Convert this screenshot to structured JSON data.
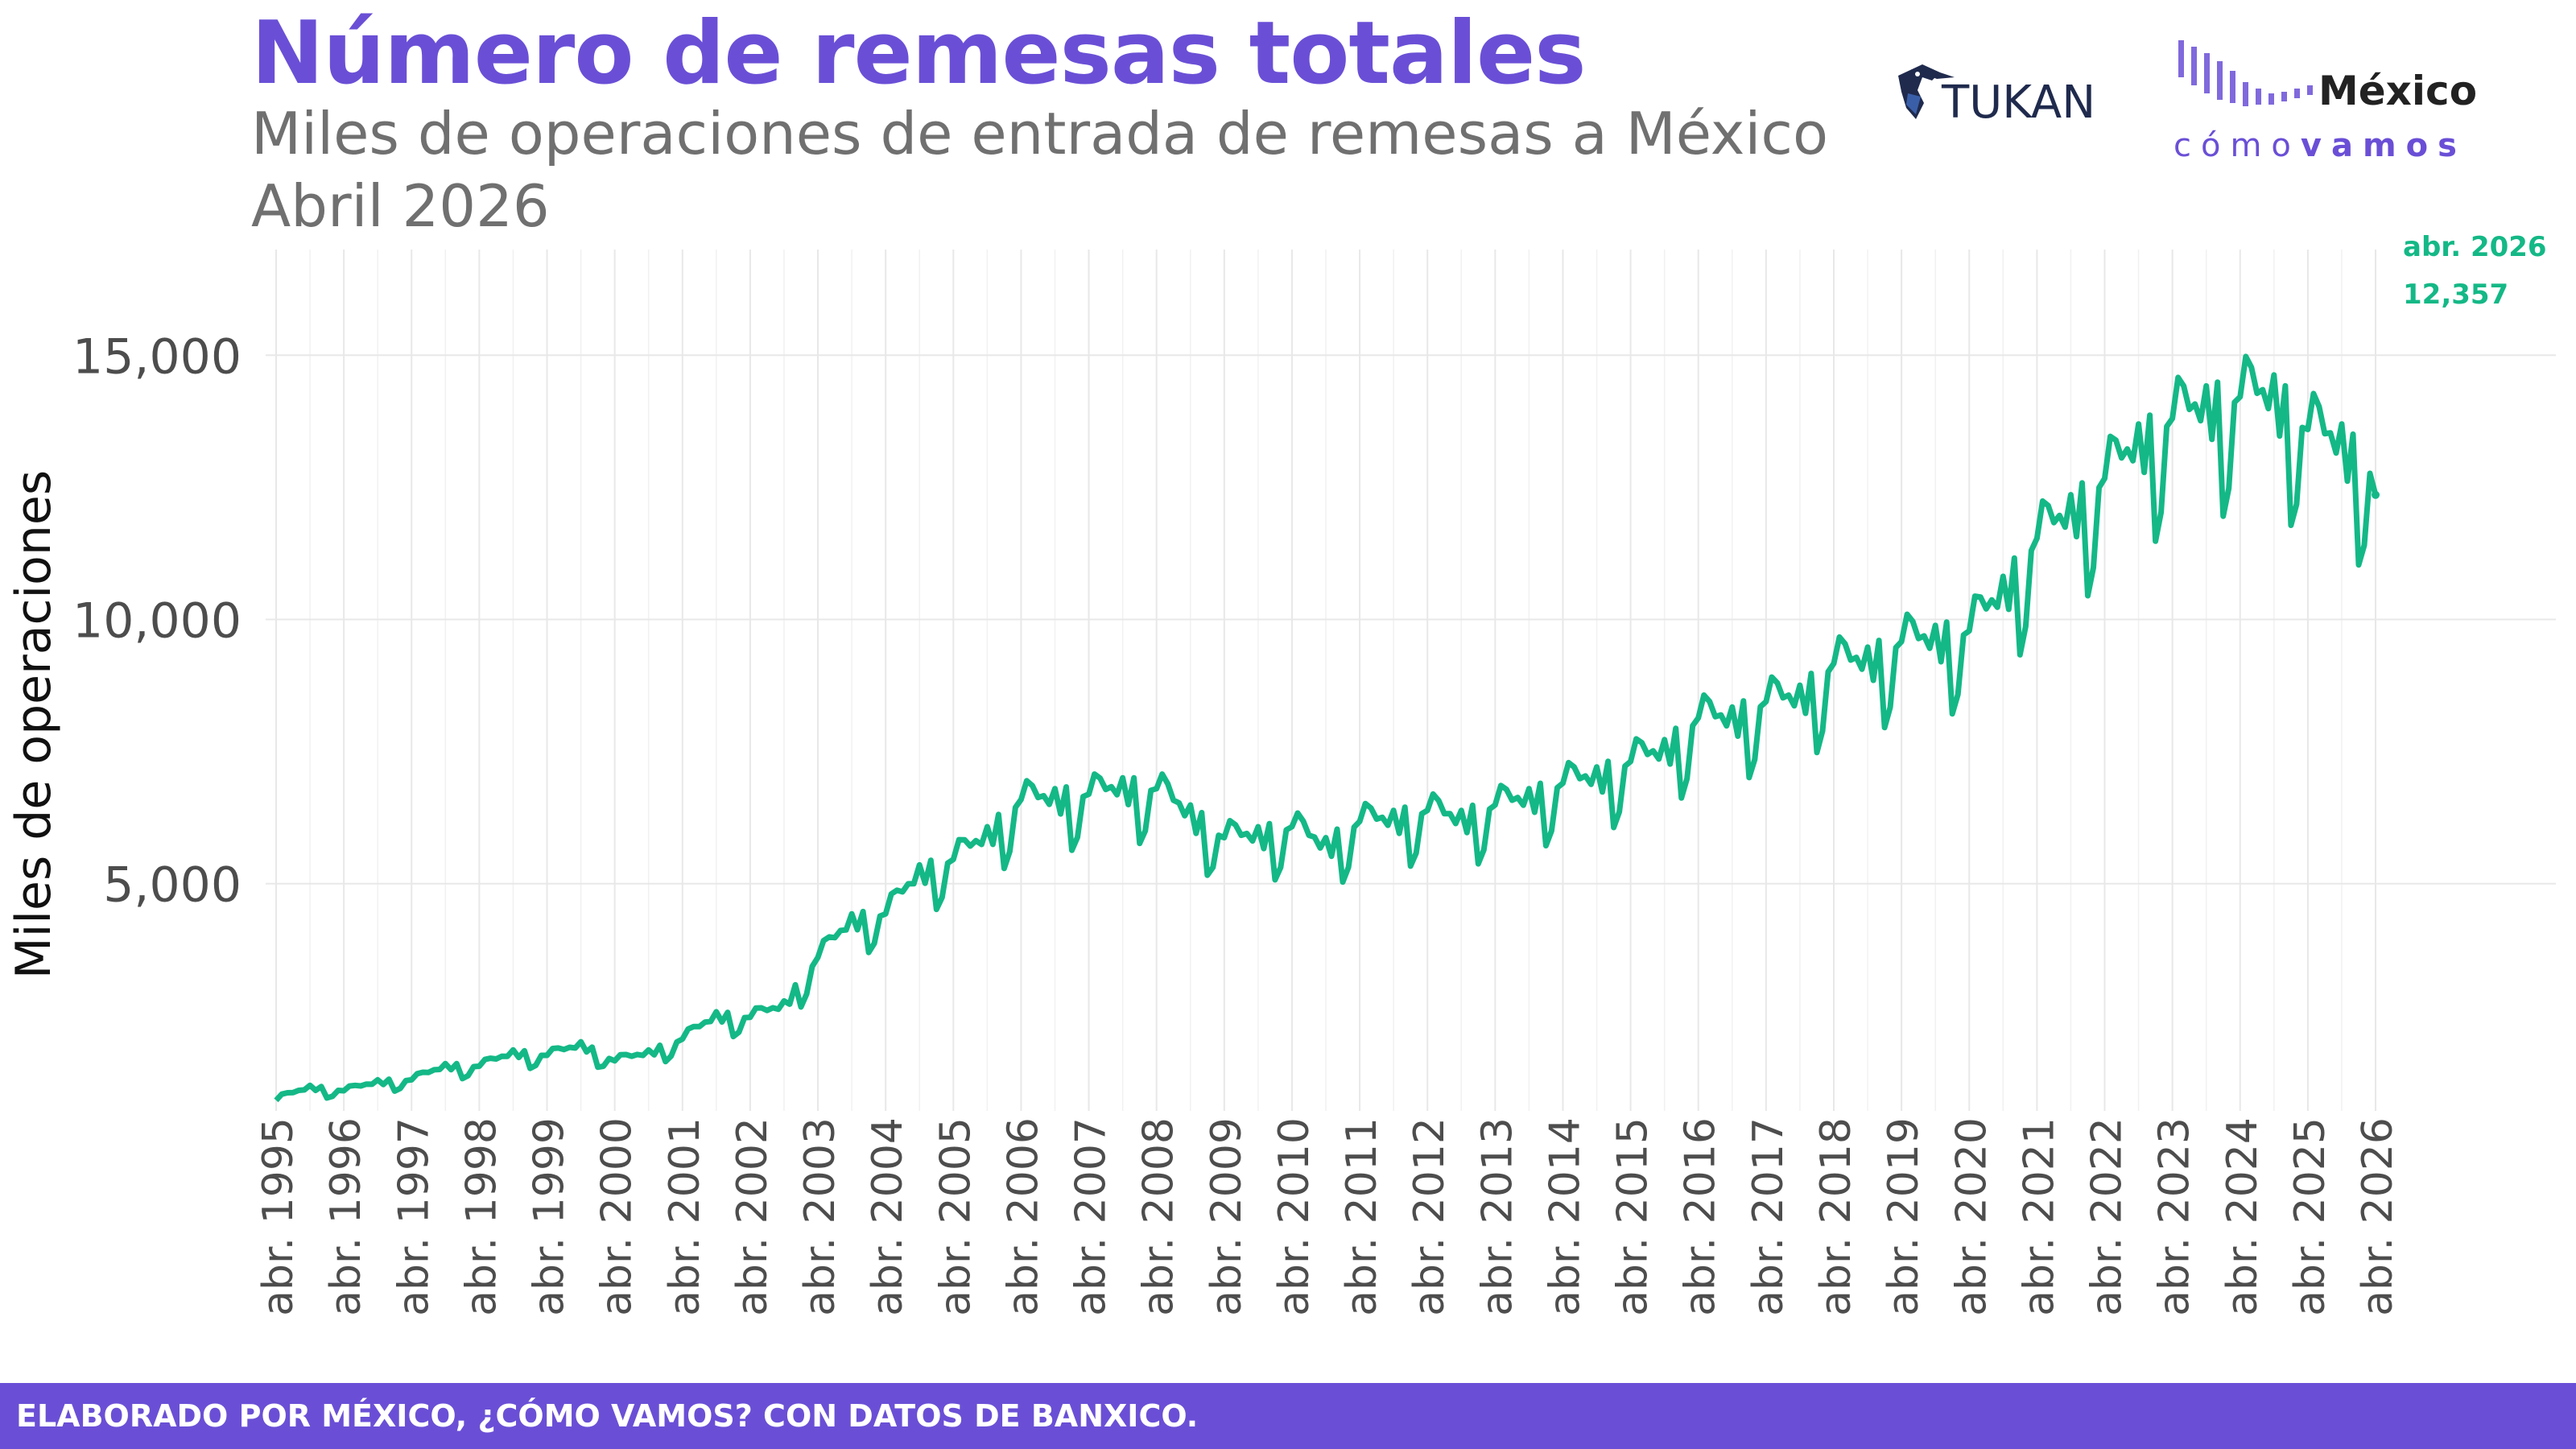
{
  "title": "Número de remesas totales",
  "subtitle": "Miles de operaciones de entrada de remesas a México",
  "date_line": "Abril 2026",
  "logos": {
    "tukan": "TUKAN",
    "mcv_top": "México",
    "mcv_bottom_light": "cómo",
    "mcv_bottom_bold": "vamos"
  },
  "footer": "ELABORADO POR MÉXICO, ¿CÓMO VAMOS? CON DATOS DE BANXICO.",
  "colors": {
    "line": "#14b886",
    "brand_purple": "#6a4fd6",
    "grid": "#e8e8e8",
    "text_gray": "#707070"
  },
  "chart_data": {
    "type": "line",
    "title": "",
    "xlabel": "",
    "ylabel": "Miles de operaciones",
    "x_ticks": [
      "abr. 1995",
      "abr. 1996",
      "abr. 1997",
      "abr. 1998",
      "abr. 1999",
      "abr. 2000",
      "abr. 2001",
      "abr. 2002",
      "abr. 2003",
      "abr. 2004",
      "abr. 2005",
      "abr. 2006",
      "abr. 2007",
      "abr. 2008",
      "abr. 2009",
      "abr. 2010",
      "abr. 2011",
      "abr. 2012",
      "abr. 2013",
      "abr. 2014",
      "abr. 2015",
      "abr. 2016",
      "abr. 2017",
      "abr. 2018",
      "abr. 2019",
      "abr. 2020",
      "abr. 2021",
      "abr. 2022",
      "abr. 2023",
      "abr. 2024",
      "abr. 2025",
      "abr. 2026"
    ],
    "y_ticks": [
      5000,
      10000,
      15000
    ],
    "y_tick_labels": [
      "5,000",
      "10,000",
      "15,000"
    ],
    "ylim": [
      700,
      17000
    ],
    "grid": true,
    "annotation": {
      "date": "abr. 2026",
      "value_label": "12,357",
      "value": 12357
    },
    "series": [
      {
        "x_start": "1995-04",
        "frequency": "monthly",
        "note_points": [
          [
            "1995-04",
            900
          ],
          [
            "1995-10",
            1150
          ],
          [
            "1996-04",
            1050
          ],
          [
            "1996-10",
            1250
          ],
          [
            "1997-04",
            1250
          ],
          [
            "1997-10",
            1550
          ],
          [
            "1998-04",
            1500
          ],
          [
            "1998-10",
            1800
          ],
          [
            "1999-04",
            1700
          ],
          [
            "1999-10",
            1950
          ],
          [
            "2000-04",
            1600
          ],
          [
            "2000-10",
            1800
          ],
          [
            "2001-04",
            2000
          ],
          [
            "2001-10",
            2500
          ],
          [
            "2002-04",
            2400
          ],
          [
            "2002-10",
            2700
          ],
          [
            "2003-04",
            3500
          ],
          [
            "2003-10",
            4300
          ],
          [
            "2004-04",
            4300
          ],
          [
            "2004-10",
            5200
          ],
          [
            "2005-04",
            5300
          ],
          [
            "2005-10",
            5900
          ],
          [
            "2006-04",
            6400
          ],
          [
            "2006-10",
            6600
          ],
          [
            "2007-04",
            6500
          ],
          [
            "2007-10",
            6800
          ],
          [
            "2008-04",
            6600
          ],
          [
            "2008-10",
            6300
          ],
          [
            "2009-04",
            5700
          ],
          [
            "2009-10",
            5900
          ],
          [
            "2010-04",
            5900
          ],
          [
            "2010-10",
            5700
          ],
          [
            "2011-04",
            6000
          ],
          [
            "2011-10",
            6200
          ],
          [
            "2012-04",
            6200
          ],
          [
            "2012-10",
            6200
          ],
          [
            "2013-04",
            6300
          ],
          [
            "2013-10",
            6600
          ],
          [
            "2014-04",
            6700
          ],
          [
            "2014-10",
            7000
          ],
          [
            "2015-04",
            7100
          ],
          [
            "2015-10",
            7500
          ],
          [
            "2016-04",
            7900
          ],
          [
            "2016-10",
            8100
          ],
          [
            "2017-04",
            8200
          ],
          [
            "2017-10",
            8500
          ],
          [
            "2018-04",
            8900
          ],
          [
            "2018-10",
            9200
          ],
          [
            "2019-04",
            9300
          ],
          [
            "2019-10",
            9600
          ],
          [
            "2020-04",
            9500
          ],
          [
            "2020-10",
            10500
          ],
          [
            "2021-04",
            11200
          ],
          [
            "2021-10",
            12000
          ],
          [
            "2022-04",
            12300
          ],
          [
            "2022-10",
            13300
          ],
          [
            "2023-04",
            13400
          ],
          [
            "2023-10",
            14000
          ],
          [
            "2024-04",
            13800
          ],
          [
            "2024-10",
            14200
          ],
          [
            "2025-04",
            13200
          ],
          [
            "2025-10",
            13300
          ],
          [
            "2026-04",
            12357
          ]
        ]
      }
    ]
  }
}
